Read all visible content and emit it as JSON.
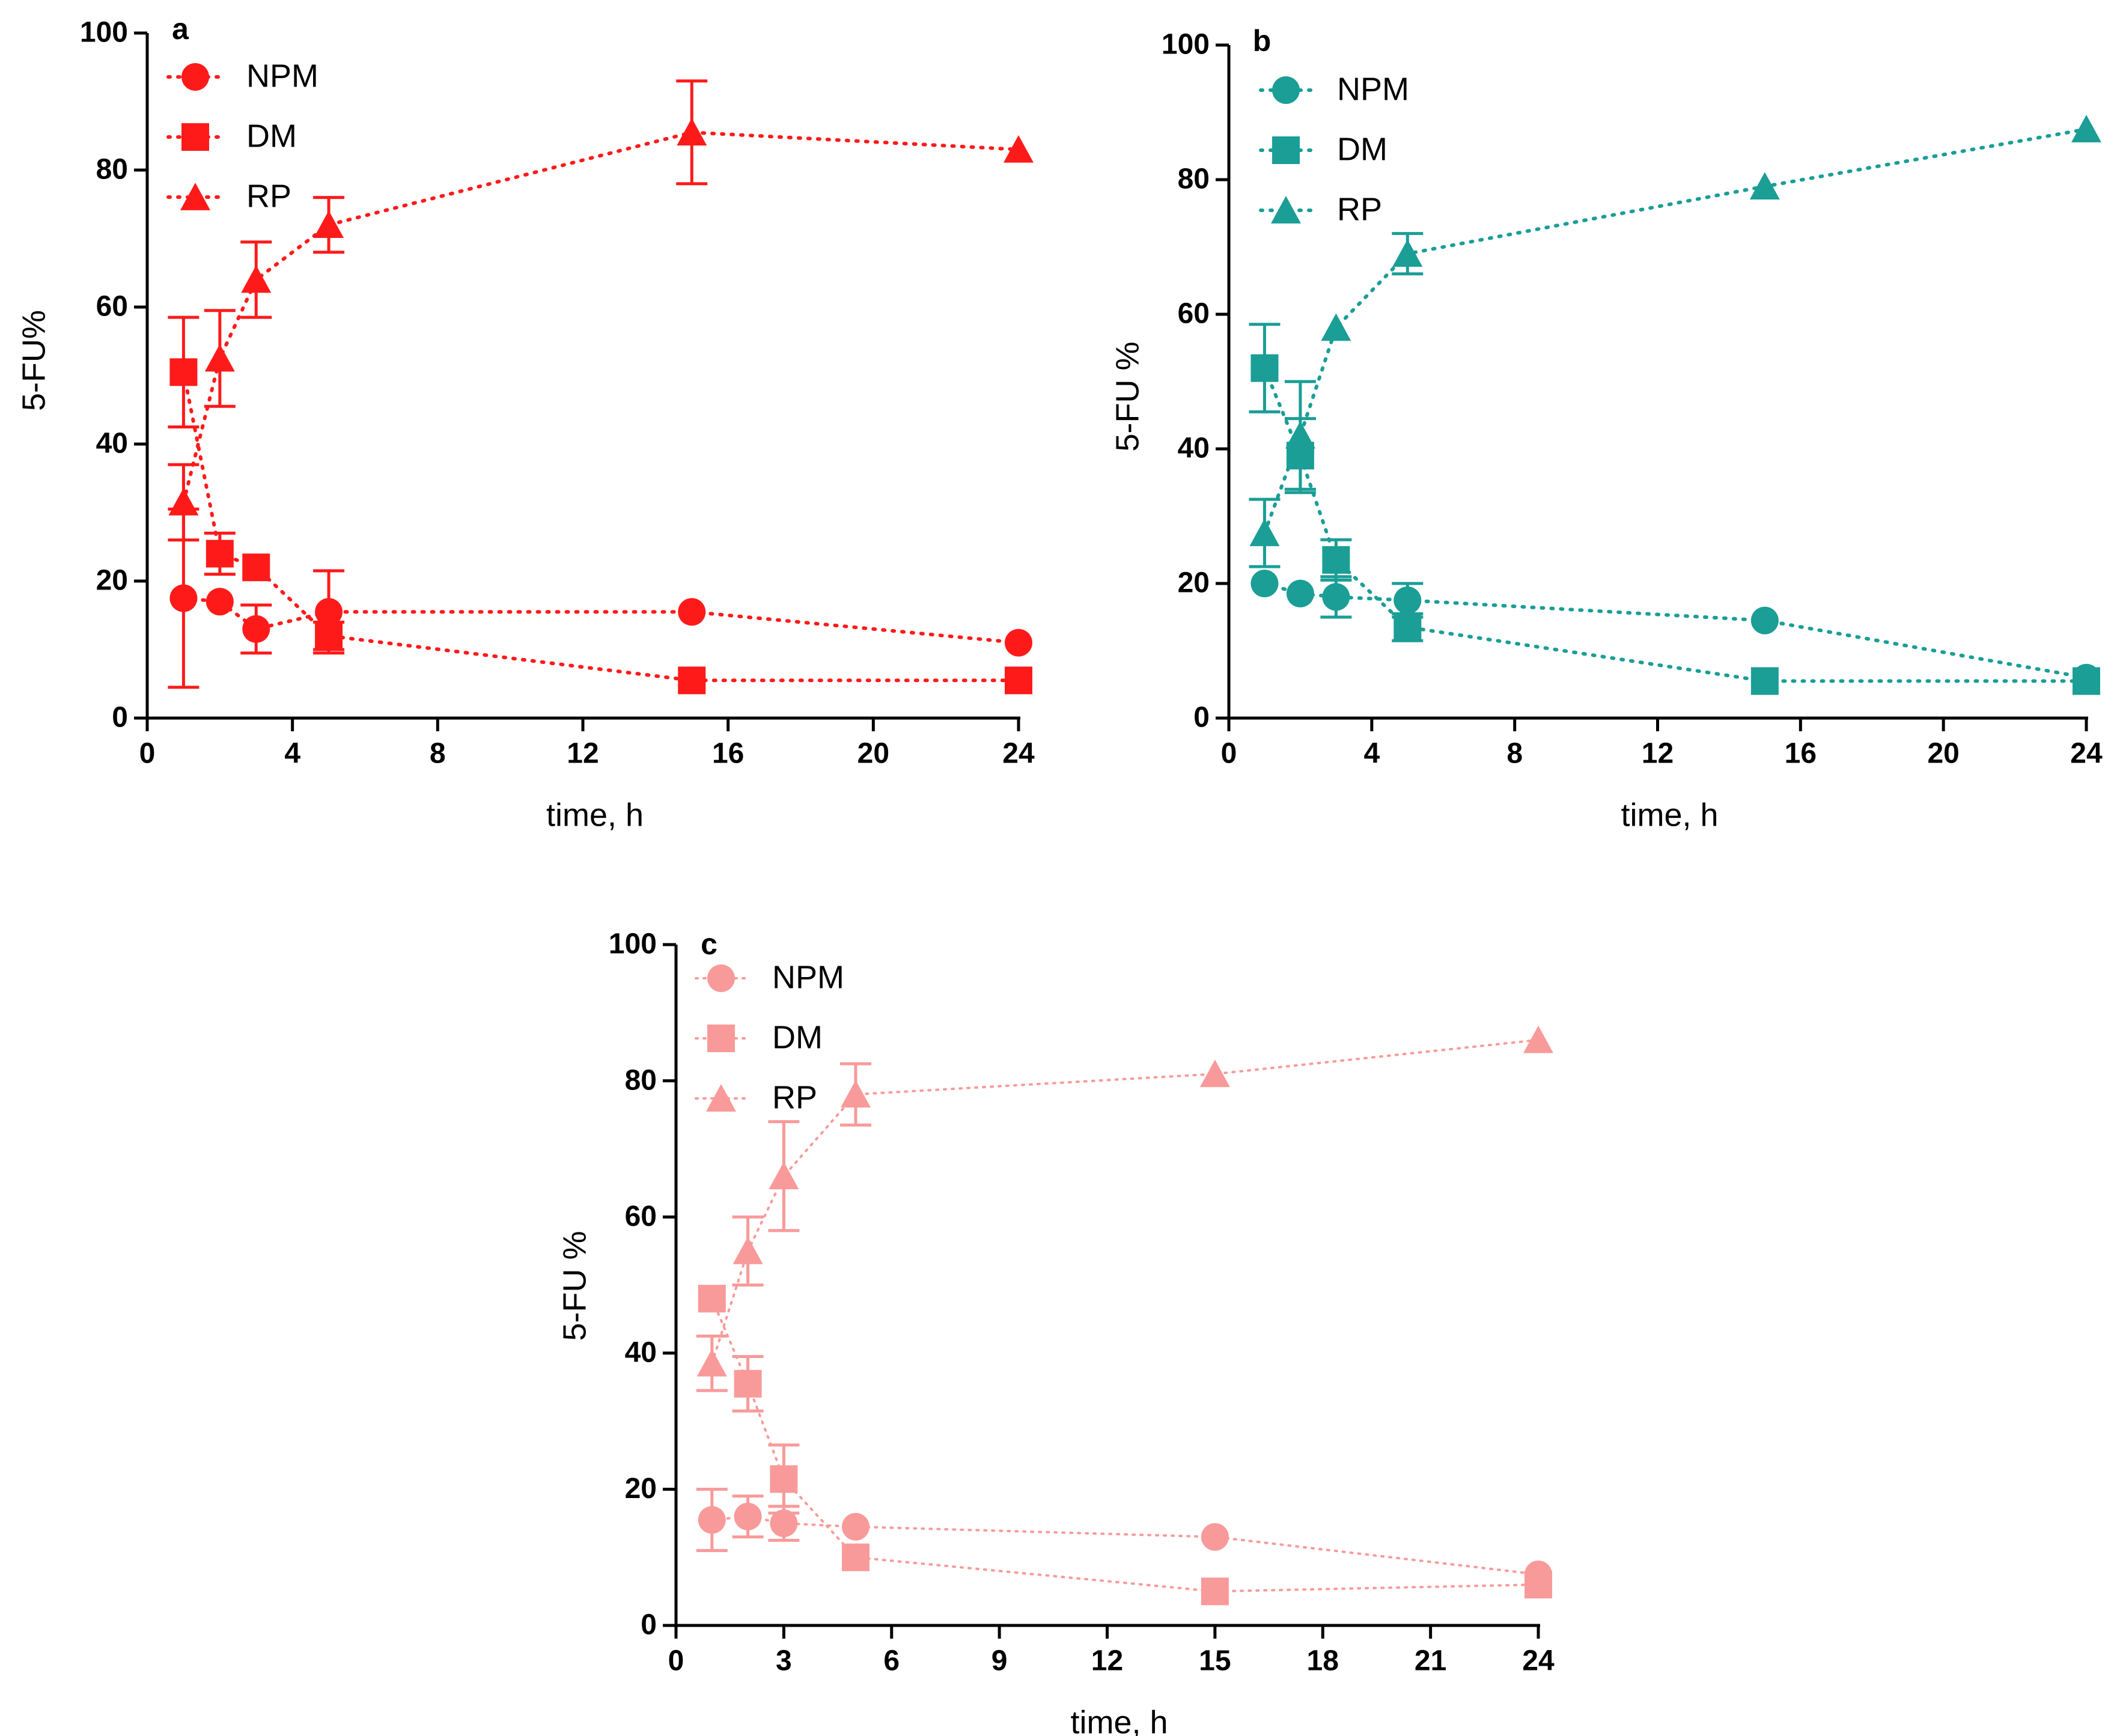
{
  "chart_data": [
    {
      "panel": "a",
      "type": "line",
      "color": "#ff1a1a",
      "title": "",
      "xlabel": "time, h",
      "ylabel": "5-FU%",
      "xlim": [
        0,
        24
      ],
      "ylim": [
        0,
        100
      ],
      "xticks": [
        0,
        4,
        8,
        12,
        16,
        20,
        24
      ],
      "yticks": [
        0,
        20,
        40,
        60,
        80,
        100
      ],
      "legend": "top-left",
      "x": [
        1,
        2,
        3,
        5,
        15,
        24
      ],
      "series": [
        {
          "name": "NPM",
          "marker": "circle",
          "values": [
            17.5,
            17,
            13,
            15.5,
            15.5,
            11
          ],
          "errors": [
            13,
            0,
            3.5,
            6,
            0,
            0
          ]
        },
        {
          "name": "DM",
          "marker": "square",
          "values": [
            50.5,
            24,
            22,
            12,
            5.5,
            5.5
          ],
          "errors": [
            8,
            3,
            0,
            2,
            0,
            0
          ]
        },
        {
          "name": "RP",
          "marker": "triangle",
          "values": [
            31.5,
            52.5,
            64,
            72,
            85.5,
            83
          ],
          "errors": [
            5.5,
            7,
            5.5,
            4,
            7.5,
            0
          ]
        }
      ]
    },
    {
      "panel": "b",
      "type": "line",
      "color": "#1a9e96",
      "title": "",
      "xlabel": "time, h",
      "ylabel": "5-FU  %",
      "xlim": [
        0,
        24
      ],
      "ylim": [
        0,
        100
      ],
      "xticks": [
        0,
        4,
        8,
        12,
        16,
        20,
        24
      ],
      "yticks": [
        0,
        20,
        40,
        60,
        80,
        100
      ],
      "legend": "top-left",
      "x": [
        1,
        2,
        3,
        5,
        15,
        24
      ],
      "series": [
        {
          "name": "NPM",
          "marker": "circle",
          "values": [
            20,
            18.5,
            18,
            17.5,
            14.5,
            6
          ],
          "errors": [
            0,
            0,
            3,
            2.5,
            0,
            0
          ]
        },
        {
          "name": "DM",
          "marker": "square",
          "values": [
            52,
            39,
            23.5,
            13.5,
            5.5,
            5.5
          ],
          "errors": [
            6.5,
            5.5,
            3,
            2,
            0,
            0
          ]
        },
        {
          "name": "RP",
          "marker": "triangle",
          "values": [
            27.5,
            42,
            58,
            69,
            79,
            87.5
          ],
          "errors": [
            5,
            8,
            0,
            3,
            0,
            0
          ]
        }
      ]
    },
    {
      "panel": "c",
      "type": "line",
      "color": "#f99a9a",
      "title": "",
      "xlabel": "time, h",
      "ylabel": "5-FU %",
      "xlim": [
        0,
        24
      ],
      "ylim": [
        0,
        100
      ],
      "xticks": [
        0,
        3,
        6,
        9,
        12,
        15,
        18,
        21,
        24
      ],
      "yticks": [
        0,
        20,
        40,
        60,
        80,
        100
      ],
      "legend": "top-left",
      "x": [
        1,
        2,
        3,
        5,
        15,
        24
      ],
      "series": [
        {
          "name": "NPM",
          "marker": "circle",
          "values": [
            15.5,
            16,
            15,
            14.5,
            13,
            7.5
          ],
          "errors": [
            4.5,
            3,
            2.5,
            0,
            0,
            0
          ]
        },
        {
          "name": "DM",
          "marker": "square",
          "values": [
            48,
            35.5,
            21.5,
            10,
            5,
            6
          ],
          "errors": [
            0,
            4,
            5,
            0,
            0,
            0
          ]
        },
        {
          "name": "RP",
          "marker": "triangle",
          "values": [
            38.5,
            55,
            66,
            78,
            81,
            86
          ],
          "errors": [
            4,
            5,
            8,
            4.5,
            0,
            0
          ]
        }
      ]
    }
  ]
}
